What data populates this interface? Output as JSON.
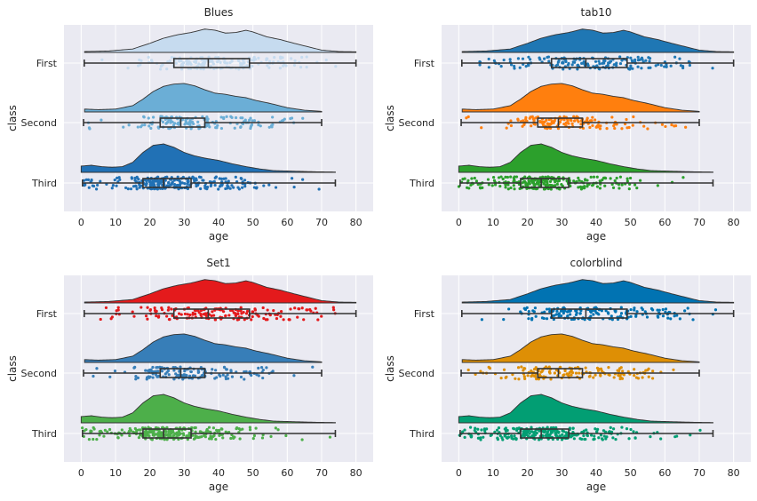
{
  "figure": {
    "chart_data": [
      {
        "type": "raincloud",
        "title": "Blues",
        "xlabel": "age",
        "ylabel": "class",
        "xlim": [
          -5,
          85
        ],
        "xticks": [
          0,
          10,
          20,
          30,
          40,
          50,
          60,
          70,
          80
        ],
        "categories": [
          "First",
          "Second",
          "Third"
        ],
        "colors": [
          "#c6dbef",
          "#6baed6",
          "#2171b5"
        ],
        "grid": true
      },
      {
        "type": "raincloud",
        "title": "tab10",
        "xlabel": "age",
        "ylabel": "class",
        "xlim": [
          -5,
          85
        ],
        "xticks": [
          0,
          10,
          20,
          30,
          40,
          50,
          60,
          70,
          80
        ],
        "categories": [
          "First",
          "Second",
          "Third"
        ],
        "colors": [
          "#1f77b4",
          "#ff7f0e",
          "#2ca02c"
        ],
        "grid": true
      },
      {
        "type": "raincloud",
        "title": "Set1",
        "xlabel": "age",
        "ylabel": "class",
        "xlim": [
          -5,
          85
        ],
        "xticks": [
          0,
          10,
          20,
          30,
          40,
          50,
          60,
          70,
          80
        ],
        "categories": [
          "First",
          "Second",
          "Third"
        ],
        "colors": [
          "#e41a1c",
          "#377eb8",
          "#4daf4a"
        ],
        "grid": true
      },
      {
        "type": "raincloud",
        "title": "colorblind",
        "xlabel": "age",
        "ylabel": "class",
        "xlim": [
          -5,
          85
        ],
        "xticks": [
          0,
          10,
          20,
          30,
          40,
          50,
          60,
          70,
          80
        ],
        "categories": [
          "First",
          "Second",
          "Third"
        ],
        "colors": [
          "#0173b2",
          "#de8f05",
          "#029e73"
        ],
        "grid": true
      }
    ],
    "distributions": {
      "First": {
        "min": 0.9,
        "q1": 27,
        "median": 37,
        "q3": 49,
        "max": 80,
        "density": [
          [
            1,
            0.03
          ],
          [
            8,
            0.05
          ],
          [
            15,
            0.12
          ],
          [
            20,
            0.32
          ],
          [
            24,
            0.5
          ],
          [
            28,
            0.62
          ],
          [
            32,
            0.7
          ],
          [
            36,
            0.82
          ],
          [
            39,
            0.78
          ],
          [
            42,
            0.68
          ],
          [
            45,
            0.7
          ],
          [
            48,
            0.78
          ],
          [
            50,
            0.72
          ],
          [
            54,
            0.55
          ],
          [
            58,
            0.45
          ],
          [
            62,
            0.32
          ],
          [
            66,
            0.2
          ],
          [
            70,
            0.08
          ],
          [
            75,
            0.03
          ],
          [
            80,
            0.02
          ]
        ]
      },
      "Second": {
        "min": 0.7,
        "q1": 23,
        "median": 29,
        "q3": 36,
        "max": 70,
        "density": [
          [
            1,
            0.1
          ],
          [
            5,
            0.08
          ],
          [
            10,
            0.1
          ],
          [
            15,
            0.22
          ],
          [
            18,
            0.45
          ],
          [
            21,
            0.72
          ],
          [
            24,
            0.9
          ],
          [
            27,
            0.98
          ],
          [
            30,
            1.0
          ],
          [
            33,
            0.92
          ],
          [
            36,
            0.78
          ],
          [
            39,
            0.66
          ],
          [
            42,
            0.62
          ],
          [
            45,
            0.55
          ],
          [
            48,
            0.5
          ],
          [
            51,
            0.4
          ],
          [
            55,
            0.3
          ],
          [
            60,
            0.15
          ],
          [
            65,
            0.06
          ],
          [
            70,
            0.02
          ]
        ]
      },
      "Third": {
        "min": 0.4,
        "q1": 18,
        "median": 24,
        "q3": 32,
        "max": 74,
        "density": [
          [
            0,
            0.22
          ],
          [
            3,
            0.25
          ],
          [
            6,
            0.2
          ],
          [
            9,
            0.18
          ],
          [
            12,
            0.2
          ],
          [
            15,
            0.35
          ],
          [
            18,
            0.7
          ],
          [
            21,
            0.95
          ],
          [
            24,
            1.0
          ],
          [
            27,
            0.88
          ],
          [
            30,
            0.7
          ],
          [
            33,
            0.58
          ],
          [
            36,
            0.5
          ],
          [
            40,
            0.42
          ],
          [
            44,
            0.3
          ],
          [
            48,
            0.2
          ],
          [
            52,
            0.12
          ],
          [
            56,
            0.06
          ],
          [
            62,
            0.04
          ],
          [
            68,
            0.02
          ],
          [
            74,
            0.01
          ]
        ]
      }
    }
  }
}
